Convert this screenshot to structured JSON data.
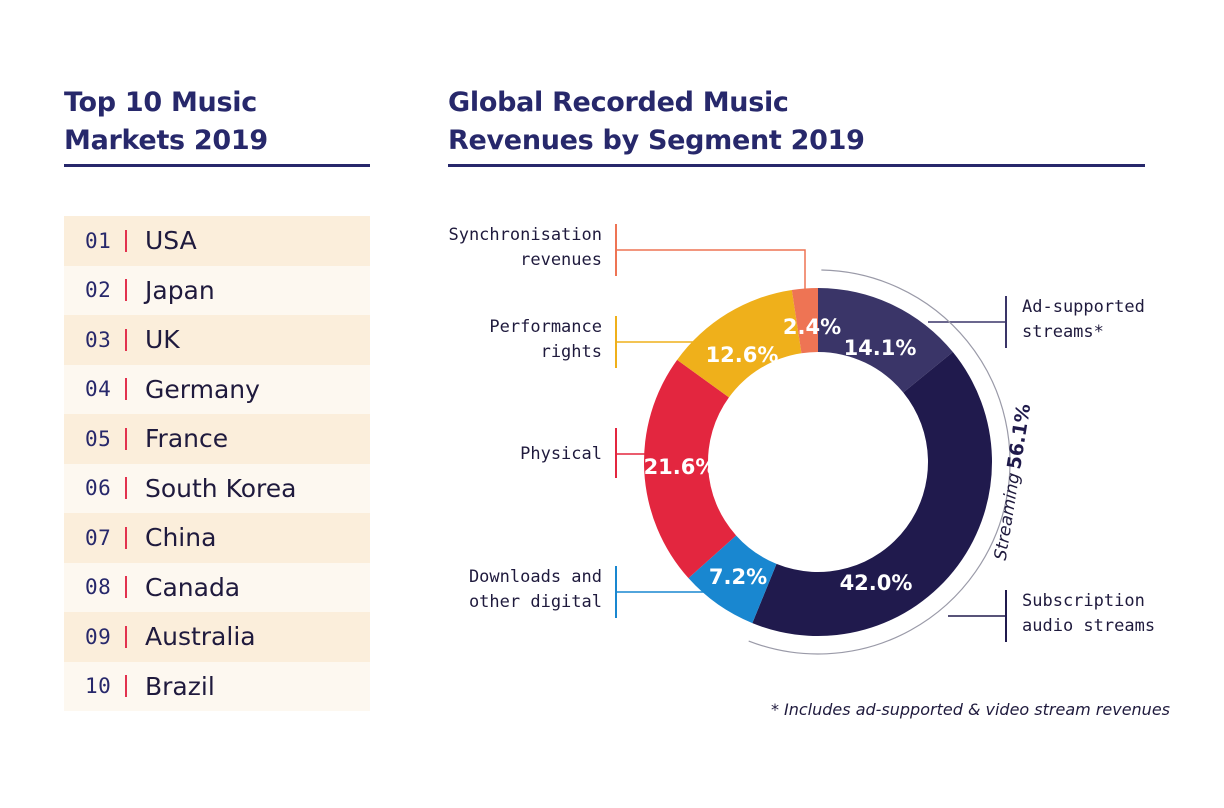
{
  "left_panel": {
    "title_line1": "Top 10 Music",
    "title_line2": "Markets 2019",
    "markets": [
      {
        "rank": "01",
        "country": "USA"
      },
      {
        "rank": "02",
        "country": "Japan"
      },
      {
        "rank": "03",
        "country": "UK"
      },
      {
        "rank": "04",
        "country": "Germany"
      },
      {
        "rank": "05",
        "country": "France"
      },
      {
        "rank": "06",
        "country": "South Korea"
      },
      {
        "rank": "07",
        "country": "China"
      },
      {
        "rank": "08",
        "country": "Canada"
      },
      {
        "rank": "09",
        "country": "Australia"
      },
      {
        "rank": "10",
        "country": "Brazil"
      }
    ]
  },
  "right_panel": {
    "title_line1": "Global Recorded Music",
    "title_line2": "Revenues by Segment 2019",
    "footnote": "* Includes ad-supported & video stream revenues"
  },
  "colors": {
    "title": "#27286b",
    "ad_supported": "#3a3568",
    "subscription": "#201a4d",
    "downloads": "#1987d0",
    "physical": "#e3263f",
    "performance": "#efb01b",
    "synchronisation": "#ee7454",
    "rank_separator": "#e2324e"
  },
  "chart_data": {
    "type": "pie",
    "style": "donut",
    "title": "Global Recorded Music Revenues by Segment 2019",
    "segments": [
      {
        "key": "ad_supported",
        "label_lines": [
          "Ad-supported",
          "streams*"
        ],
        "value": 14.1,
        "display": "14.1%",
        "color": "#3a3568"
      },
      {
        "key": "subscription",
        "label_lines": [
          "Subscription",
          "audio streams"
        ],
        "value": 42.0,
        "display": "42.0%",
        "color": "#201a4d"
      },
      {
        "key": "downloads",
        "label_lines": [
          "Downloads and",
          "other digital"
        ],
        "value": 7.2,
        "display": "7.2%",
        "color": "#1987d0"
      },
      {
        "key": "physical",
        "label_lines": [
          "Physical"
        ],
        "value": 21.6,
        "display": "21.6%",
        "color": "#e3263f"
      },
      {
        "key": "performance",
        "label_lines": [
          "Performance",
          "rights"
        ],
        "value": 12.6,
        "display": "12.6%",
        "color": "#efb01b"
      },
      {
        "key": "synchronisation",
        "label_lines": [
          "Synchronisation",
          "revenues"
        ],
        "value": 2.4,
        "display": "2.4%",
        "color": "#ee7454"
      }
    ],
    "group": {
      "label": "Streaming",
      "value": 56.1,
      "display": "56.1%",
      "members": [
        "ad_supported",
        "subscription"
      ]
    }
  }
}
